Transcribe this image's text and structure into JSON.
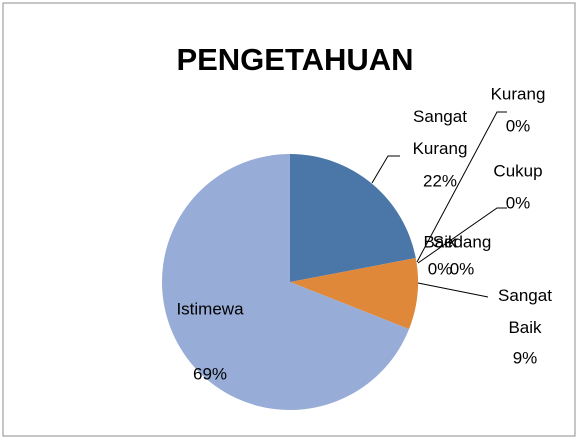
{
  "chart_data": {
    "type": "pie",
    "title": "PENGETAHUAN",
    "categories": [
      "Sangat Kurang",
      "Kurang",
      "Cukup",
      "Baik",
      "Sedang",
      "Sangat Baik",
      "Istimewa"
    ],
    "values": [
      22,
      0,
      0,
      0,
      0,
      9,
      69
    ],
    "value_labels": [
      "22%",
      "0%",
      "0%",
      "0%",
      "0%",
      "9%",
      "69%"
    ],
    "colors": [
      "#4a76a8",
      "#b9504d",
      "#9bbb59",
      "#8064a2",
      "#4bacc6",
      "#e0883a",
      "#97acd6"
    ]
  }
}
